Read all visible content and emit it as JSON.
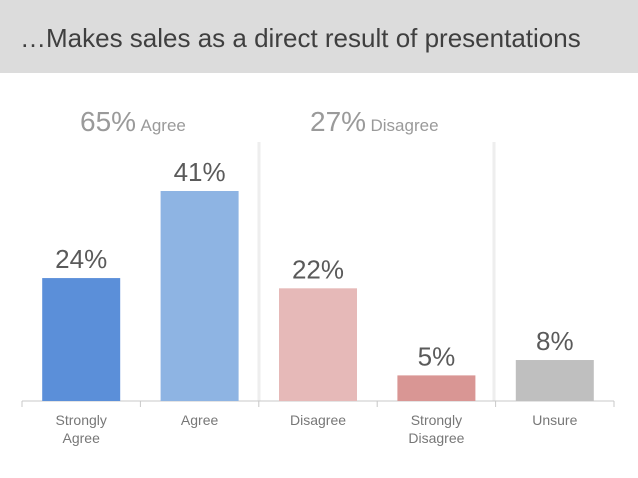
{
  "title": "…Makes sales as a direct result of presentations",
  "groups": [
    {
      "percent": "65%",
      "label": "Agree"
    },
    {
      "percent": "27%",
      "label": "Disagree"
    }
  ],
  "chart_data": {
    "type": "bar",
    "categories": [
      [
        "Strongly",
        "Agree"
      ],
      [
        "Agree"
      ],
      [
        "Disagree"
      ],
      [
        "Strongly",
        "Disagree"
      ],
      [
        "Unsure"
      ]
    ],
    "values": [
      24,
      41,
      22,
      5,
      8
    ],
    "value_labels": [
      "24%",
      "41%",
      "22%",
      "5%",
      "8%"
    ],
    "colors": [
      "#5b8fd9",
      "#8eb4e3",
      "#e6b9b8",
      "#d99694",
      "#bfbfbf"
    ],
    "ylim": [
      0,
      41
    ],
    "grid": false,
    "legend": "none"
  }
}
